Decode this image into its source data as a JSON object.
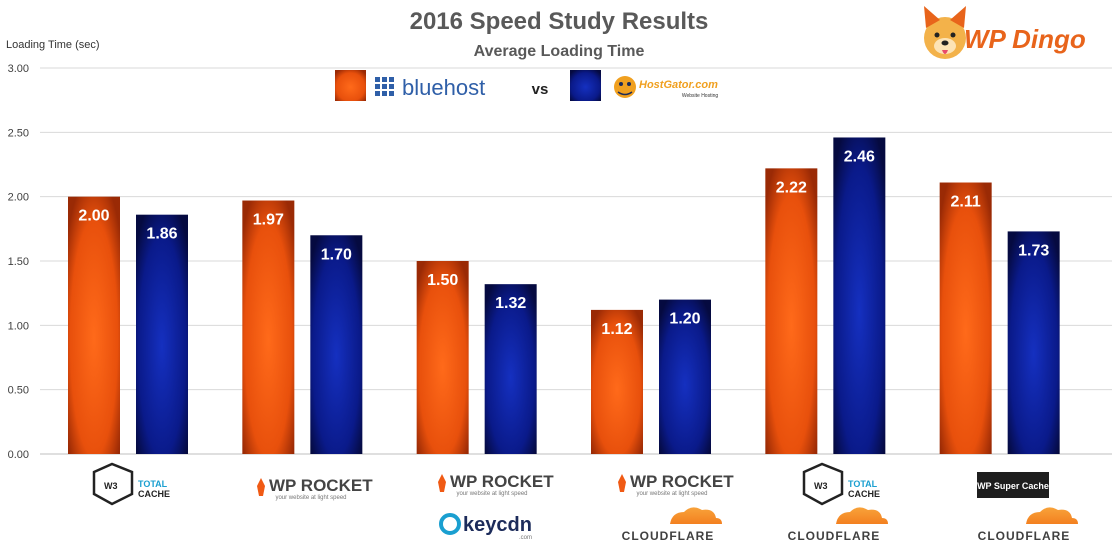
{
  "chart_data": {
    "type": "bar",
    "title": "2016 Speed Study Results",
    "subtitle": "Average Loading Time",
    "ylabel": "Loading Time (sec)",
    "ylim": [
      0,
      3
    ],
    "yticks": [
      "0.00",
      "0.50",
      "1.00",
      "1.50",
      "2.00",
      "2.50",
      "3.00"
    ],
    "categories": [
      "W3 Total Cache",
      "WP Rocket",
      "WP Rocket + KeyCDN",
      "WP Rocket + Cloudflare",
      "W3 Total Cache + Cloudflare",
      "WP Super Cache + Cloudflare"
    ],
    "series": [
      {
        "name": "bluehost",
        "color": "#f05a14",
        "values": [
          2.0,
          1.97,
          1.5,
          1.12,
          2.22,
          2.11
        ],
        "labels": [
          "2.00",
          "1.97",
          "1.50",
          "1.12",
          "2.22",
          "2.11"
        ]
      },
      {
        "name": "HostGator.com",
        "color": "#0a1a8a",
        "values": [
          1.86,
          1.7,
          1.32,
          1.2,
          2.46,
          1.73
        ],
        "labels": [
          "1.86",
          "1.70",
          "1.32",
          "1.20",
          "2.46",
          "1.73"
        ]
      }
    ],
    "grid": true,
    "legend_position": "top-center"
  },
  "legend": {
    "bluehost_label": "bluehost",
    "vs_label": "vs",
    "hostgator_label": "HostGator.com",
    "hostgator_sub": "Website Hosting"
  },
  "brand": {
    "name": "WP Dingo"
  },
  "logos": {
    "w3_badge": "W3",
    "w3_line1": "TOTAL",
    "w3_line2": "CACHE",
    "wp_rocket": "WP ROCKET",
    "wp_rocket_tag": "your website at light speed",
    "keycdn": "keycdn",
    "keycdn_sub": ".com",
    "cloudflare": "CLOUDFLARE",
    "wp_super_cache": "WP Super Cache"
  },
  "colors": {
    "bluehost": "#f05a14",
    "hostgator": "#0a1a8a",
    "grid": "#d9d9d9",
    "text": "#595959"
  }
}
